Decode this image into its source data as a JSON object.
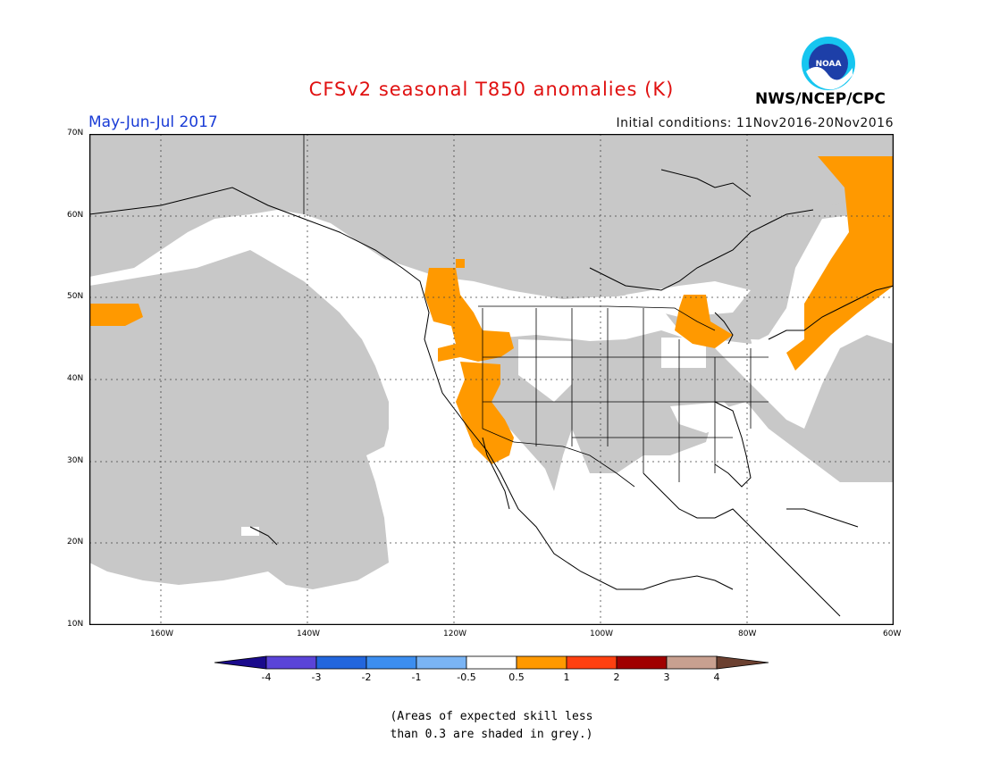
{
  "title": "CFSv2 seasonal T850 anomalies (K)",
  "period": "May-Jun-Jul 2017",
  "initial_conditions": "Initial conditions: 11Nov2016-20Nov2016",
  "agency": "NWS/NCEP/CPC",
  "logo_text": "NOAA",
  "lat_labels": [
    "70N",
    "60N",
    "50N",
    "40N",
    "30N",
    "20N",
    "10N"
  ],
  "lon_labels": [
    "160W",
    "140W",
    "120W",
    "100W",
    "80W",
    "60W"
  ],
  "colorbar": {
    "labels": [
      "-4",
      "-3",
      "-2",
      "-1",
      "-0.5",
      "0.5",
      "1",
      "2",
      "3",
      "4"
    ],
    "colors": [
      "#1a0a8c",
      "#5a44d8",
      "#2266dd",
      "#3c8ef0",
      "#7ab4f4",
      "#ffffff",
      "#ff9900",
      "#ff4010",
      "#a00000",
      "#c8a090",
      "#6b4030"
    ]
  },
  "note_line1": "(Areas of expected skill less",
  "note_line2": "than 0.3 are shaded in grey.)",
  "colors": {
    "grey_skill": "#c8c8c8",
    "warm_anomaly": "#ff9900",
    "title": "#e01010",
    "period": "#1a3cd6"
  }
}
